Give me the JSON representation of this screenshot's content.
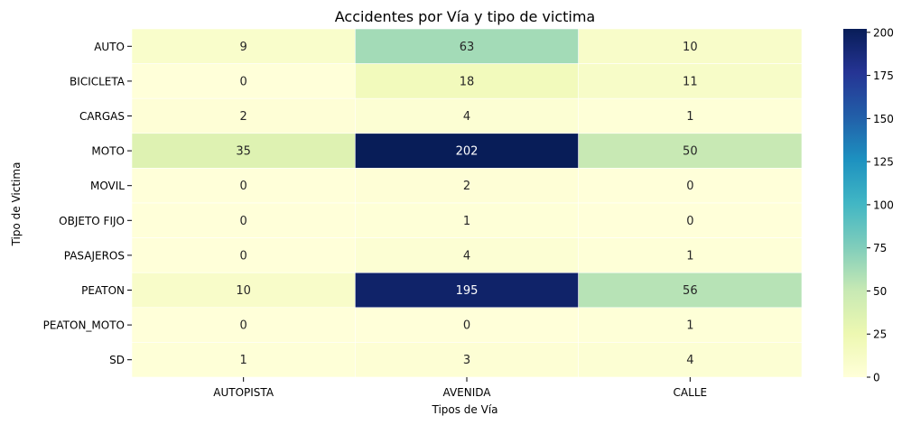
{
  "chart_data": {
    "type": "heatmap",
    "title": "Accidentes por Vía y tipo de victima",
    "xlabel": "Tipos de Vía",
    "ylabel": "Tipo de Victima",
    "x_categories": [
      "AUTOPISTA",
      "AVENIDA",
      "CALLE"
    ],
    "y_categories": [
      "AUTO",
      "BICICLETA",
      "CARGAS",
      "MOTO",
      "MOVIL",
      "OBJETO FIJO",
      "PASAJEROS",
      "PEATON",
      "PEATON_MOTO",
      "SD"
    ],
    "values": [
      [
        9,
        63,
        10
      ],
      [
        0,
        18,
        11
      ],
      [
        2,
        4,
        1
      ],
      [
        35,
        202,
        50
      ],
      [
        0,
        2,
        0
      ],
      [
        0,
        1,
        0
      ],
      [
        0,
        4,
        1
      ],
      [
        10,
        195,
        56
      ],
      [
        0,
        0,
        1
      ],
      [
        1,
        3,
        4
      ]
    ],
    "colormap": "YlGnBu",
    "color_range": [
      0,
      202
    ],
    "colorbar_ticks": [
      0,
      25,
      50,
      75,
      100,
      125,
      150,
      175,
      200
    ],
    "annotations": true,
    "grid": false
  }
}
